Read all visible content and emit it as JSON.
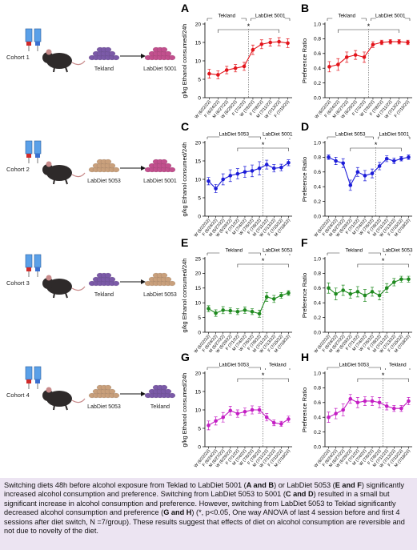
{
  "chart_data": [
    {
      "type": "line",
      "panel": "A",
      "ylabel": "g/kg Ethanol consumed/24h",
      "color": "#e3141b",
      "categories": [
        "W (6/22/22)",
        "F (6/24/22)",
        "M (6/27/22)",
        "W (6/29/22)",
        "F (7/1/22)",
        "W (7/6/22)",
        "F (7/8/22)",
        "M (7/11/22)",
        "W (7/13/22)",
        "F (7/15/22)"
      ],
      "values": [
        6.5,
        6.2,
        7.5,
        8,
        8.5,
        13,
        14.5,
        15,
        15.2,
        14.8
      ],
      "errors": [
        1.2,
        1.1,
        1,
        1,
        1.1,
        1.3,
        1.2,
        1,
        1.1,
        1.2
      ],
      "ylim": [
        0,
        20
      ],
      "yticks": [
        0,
        5,
        10,
        15,
        20
      ],
      "periods": [
        "Tekland",
        "LabDiet 5001"
      ],
      "significance": "*"
    },
    {
      "type": "line",
      "panel": "B",
      "ylabel": "Preference Ratio",
      "color": "#e3141b",
      "categories": [
        "W (6/22/22)",
        "F (6/24/22)",
        "M (6/27/22)",
        "W (6/29/22)",
        "F (7/1/22)",
        "W (7/6/22)",
        "F (7/8/22)",
        "M (7/11/22)",
        "W (7/13/22)",
        "F (7/15/22)"
      ],
      "values": [
        0.42,
        0.45,
        0.55,
        0.58,
        0.55,
        0.72,
        0.75,
        0.76,
        0.76,
        0.75
      ],
      "errors": [
        0.07,
        0.08,
        0.07,
        0.06,
        0.07,
        0.04,
        0.03,
        0.03,
        0.03,
        0.03
      ],
      "ylim": [
        0,
        1
      ],
      "yticks": [
        {
          "value": 0,
          "label": "0.0"
        },
        0.2,
        0.4,
        0.6,
        0.8,
        {
          "value": 1,
          "label": "1.0"
        }
      ],
      "periods": [
        "Tekland",
        "LabDiet 5001"
      ],
      "significance": "*"
    },
    {
      "type": "line",
      "panel": "C",
      "ylabel": "g/kg Ethanol consumed/24h",
      "color": "#1c1cd8",
      "categories": [
        "W (6/22/22)",
        "F (6/24/22)",
        "M (6/27/22)",
        "W (6/29/22)",
        "F (7/1/22)",
        "M (7/4/22)",
        "W (7/6/22)",
        "F (7/8/22)",
        "M (7/11/22)",
        "W (7/13/22)",
        "F (7/15/22)",
        "M (7/18/22)"
      ],
      "values": [
        9.5,
        7.5,
        10,
        11,
        11.5,
        12,
        12.3,
        13,
        14,
        13,
        13.2,
        14.5
      ],
      "errors": [
        1,
        1.1,
        1.5,
        1.6,
        1.4,
        1.5,
        1.6,
        1.8,
        1.2,
        1,
        0.9,
        0.8
      ],
      "ylim": [
        0,
        20
      ],
      "yticks": [
        0,
        5,
        10,
        15,
        20
      ],
      "periods": [
        "LabDiet 5053",
        "LabDiet 5001"
      ],
      "significance": "*"
    },
    {
      "type": "line",
      "panel": "D",
      "ylabel": "Preference Ratio",
      "color": "#1c1cd8",
      "categories": [
        "W (6/22/22)",
        "F (6/24/22)",
        "M (6/27/22)",
        "W (6/29/22)",
        "F (7/1/22)",
        "M (7/4/22)",
        "W (7/6/22)",
        "F (7/8/22)",
        "M (7/11/22)",
        "W (7/13/22)",
        "F (7/15/22)",
        "M (7/18/22)"
      ],
      "values": [
        0.8,
        0.75,
        0.72,
        0.42,
        0.6,
        0.55,
        0.58,
        0.68,
        0.78,
        0.75,
        0.78,
        0.8
      ],
      "errors": [
        0.03,
        0.05,
        0.06,
        0.07,
        0.06,
        0.07,
        0.06,
        0.05,
        0.04,
        0.04,
        0.03,
        0.03
      ],
      "ylim": [
        0,
        1
      ],
      "yticks": [
        {
          "value": 0,
          "label": "0.0"
        },
        0.2,
        0.4,
        0.6,
        0.8,
        {
          "value": 1,
          "label": "1.0"
        }
      ],
      "periods": [
        "LabDiet 5053",
        "LabDiet 5001"
      ],
      "significance": "*"
    },
    {
      "type": "line",
      "panel": "E",
      "ylabel": "g/kg Ethanol consumed/24h",
      "color": "#1f8a1f",
      "categories": [
        "W (6/22/22)",
        "F (6/24/22)",
        "M (6/27/22)",
        "W (6/29/22)",
        "F (7/1/22)",
        "M (7/4/22)",
        "W (7/6/22)",
        "F (7/8/22)",
        "M (7/11/22)",
        "W (7/13/22)",
        "F (7/15/22)",
        "M (7/18/22)"
      ],
      "values": [
        8,
        6.5,
        7.5,
        7.3,
        7,
        7.5,
        7,
        6.3,
        12,
        11.3,
        12.5,
        13.3
      ],
      "errors": [
        1,
        1.1,
        1.2,
        1,
        1,
        1.1,
        1,
        1.2,
        1.5,
        1.2,
        1,
        0.8
      ],
      "ylim": [
        0,
        25
      ],
      "yticks": [
        0,
        5,
        10,
        15,
        20,
        25
      ],
      "periods": [
        "Tekland",
        "LabDiet 5053"
      ],
      "significance": "*"
    },
    {
      "type": "line",
      "panel": "F",
      "ylabel": "Preference Ratio",
      "color": "#1f8a1f",
      "categories": [
        "W (6/22/22)",
        "F (6/24/22)",
        "M (6/27/22)",
        "W (6/29/22)",
        "F (7/1/22)",
        "M (7/4/22)",
        "W (7/6/22)",
        "F (7/8/22)",
        "M (7/11/22)",
        "W (7/13/22)",
        "F (7/15/22)",
        "M (7/18/22)"
      ],
      "values": [
        0.6,
        0.52,
        0.57,
        0.52,
        0.55,
        0.5,
        0.55,
        0.5,
        0.6,
        0.68,
        0.72,
        0.72
      ],
      "errors": [
        0.07,
        0.08,
        0.07,
        0.06,
        0.07,
        0.08,
        0.06,
        0.06,
        0.06,
        0.05,
        0.04,
        0.04
      ],
      "ylim": [
        0,
        1
      ],
      "yticks": [
        {
          "value": 0,
          "label": "0.0"
        },
        0.2,
        0.4,
        0.6,
        0.8,
        {
          "value": 1,
          "label": "1.0"
        }
      ],
      "periods": [
        "Tekland",
        "LabDiet 5053"
      ],
      "significance": "*"
    },
    {
      "type": "line",
      "panel": "G",
      "ylabel": "g/kg Ethanol consumed/24h",
      "color": "#c41fc4",
      "categories": [
        "W (6/22/22)",
        "F (6/24/22)",
        "M (6/27/22)",
        "W (6/29/22)",
        "F (7/1/22)",
        "M (7/4/22)",
        "W (7/6/22)",
        "F (7/8/22)",
        "M (7/11/22)",
        "W (7/13/22)",
        "F (7/15/22)",
        "M (7/18/22)"
      ],
      "values": [
        5.8,
        7,
        8,
        9.8,
        9,
        9.5,
        10,
        10,
        8,
        6.5,
        6.2,
        7.5
      ],
      "errors": [
        1.2,
        1.1,
        1.3,
        1.2,
        1,
        1,
        1.1,
        0.9,
        1,
        0.8,
        0.7,
        0.8
      ],
      "ylim": [
        0,
        20
      ],
      "yticks": [
        0,
        5,
        10,
        15,
        20
      ],
      "periods": [
        "LabDiet 5053",
        "Tekland"
      ],
      "significance": "*"
    },
    {
      "type": "line",
      "panel": "H",
      "ylabel": "Preference Ratio",
      "color": "#c41fc4",
      "categories": [
        "W (6/22/22)",
        "F (6/24/22)",
        "M (6/27/22)",
        "W (6/29/22)",
        "F (7/1/22)",
        "M (7/4/22)",
        "W (7/6/22)",
        "F (7/8/22)",
        "M (7/11/22)",
        "W (7/13/22)",
        "F (7/15/22)",
        "M (7/18/22)"
      ],
      "values": [
        0.4,
        0.45,
        0.5,
        0.65,
        0.6,
        0.62,
        0.62,
        0.6,
        0.55,
        0.52,
        0.52,
        0.62
      ],
      "errors": [
        0.07,
        0.07,
        0.08,
        0.06,
        0.07,
        0.06,
        0.06,
        0.07,
        0.05,
        0.04,
        0.04,
        0.05
      ],
      "ylim": [
        0,
        1
      ],
      "yticks": [
        {
          "value": 0,
          "label": "0.0"
        },
        0.2,
        0.4,
        0.6,
        0.8,
        {
          "value": 1,
          "label": "1.0"
        }
      ],
      "periods": [
        "LabDiet 5053",
        "Tekland"
      ],
      "significance": "*"
    }
  ],
  "cohorts": [
    {
      "label": "Cohort 1",
      "before": "Tekland",
      "after": "LabDiet 5001"
    },
    {
      "label": "Cohort 2",
      "before": "LabDiet 5053",
      "after": "LabDiet 5001"
    },
    {
      "label": "Cohort 3",
      "before": "Tekland",
      "after": "LabDiet 5053"
    },
    {
      "label": "Cohort 4",
      "before": "LabDiet 5053",
      "after": "Tekland"
    }
  ],
  "caption": [
    {
      "text": "Switching diets 48h before alcohol exposure from Teklad to LabDiet 5001 (",
      "bold": false
    },
    {
      "text": "A and B",
      "bold": true
    },
    {
      "text": ") or LabDiet 5053 (",
      "bold": false
    },
    {
      "text": "E and F",
      "bold": true
    },
    {
      "text": ") significantly increased alcohol consumption and preference. Switching from LabDiet 5053 to 5001 (",
      "bold": false
    },
    {
      "text": "C and D",
      "bold": true
    },
    {
      "text": ") resulted in a small but significant increase in alcohol consumption and preference. However, switching from LabDiet 5053 to Teklad significantly decreased alcohol consumption and preference (",
      "bold": false
    },
    {
      "text": "G and H",
      "bold": true
    },
    {
      "text": ") (*, p<0.05, One way ANOVA of last 4 session before and first 4 sessions after diet switch, N =7/group). These results suggest that effects of diet on alcohol consumption are reversible and not due to novelty of the diet.",
      "bold": false
    }
  ]
}
